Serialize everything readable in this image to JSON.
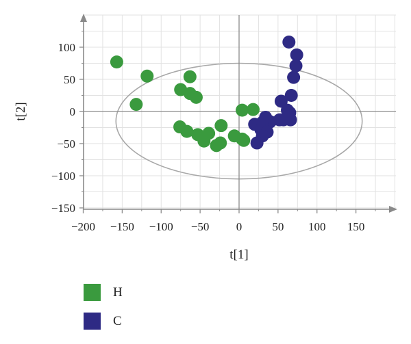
{
  "chart_data": {
    "type": "scatter",
    "xlabel": "t[1]",
    "ylabel": "t[2]",
    "xlim": [
      -200,
      200
    ],
    "ylim": [
      -150,
      150
    ],
    "xticks": [
      -200,
      -150,
      -100,
      -50,
      0,
      50,
      100,
      150
    ],
    "yticks": [
      -150,
      -100,
      -50,
      0,
      50,
      100
    ],
    "grid": true,
    "ellipse": {
      "cx": 0,
      "cy": -15,
      "rx": 158,
      "ry": 90
    },
    "legend_position": "bottom-left",
    "series": [
      {
        "name": "H",
        "color": "#3a9a3e",
        "points": [
          [
            -157,
            77
          ],
          [
            -118,
            55
          ],
          [
            -132,
            11
          ],
          [
            -63,
            54
          ],
          [
            -75,
            34
          ],
          [
            -63,
            28
          ],
          [
            -55,
            22
          ],
          [
            -76,
            -24
          ],
          [
            -67,
            -31
          ],
          [
            -53,
            -36
          ],
          [
            -39,
            -34
          ],
          [
            -45,
            -46
          ],
          [
            -23,
            -22
          ],
          [
            -24,
            -49
          ],
          [
            -29,
            -53
          ],
          [
            -6,
            -38
          ],
          [
            4,
            -43
          ],
          [
            6,
            -45
          ],
          [
            4,
            2
          ],
          [
            18,
            3
          ]
        ]
      },
      {
        "name": "C",
        "color": "#2e2a84",
        "points": [
          [
            64,
            108
          ],
          [
            74,
            88
          ],
          [
            73,
            71
          ],
          [
            70,
            53
          ],
          [
            67,
            25
          ],
          [
            54,
            16
          ],
          [
            62,
            2
          ],
          [
            65,
            -2
          ],
          [
            66,
            -13
          ],
          [
            57,
            -13
          ],
          [
            52,
            -13
          ],
          [
            40,
            -16
          ],
          [
            34,
            -9
          ],
          [
            30,
            -17
          ],
          [
            20,
            -20
          ],
          [
            28,
            -28
          ],
          [
            36,
            -32
          ],
          [
            30,
            -38
          ],
          [
            23,
            -49
          ]
        ]
      }
    ]
  }
}
